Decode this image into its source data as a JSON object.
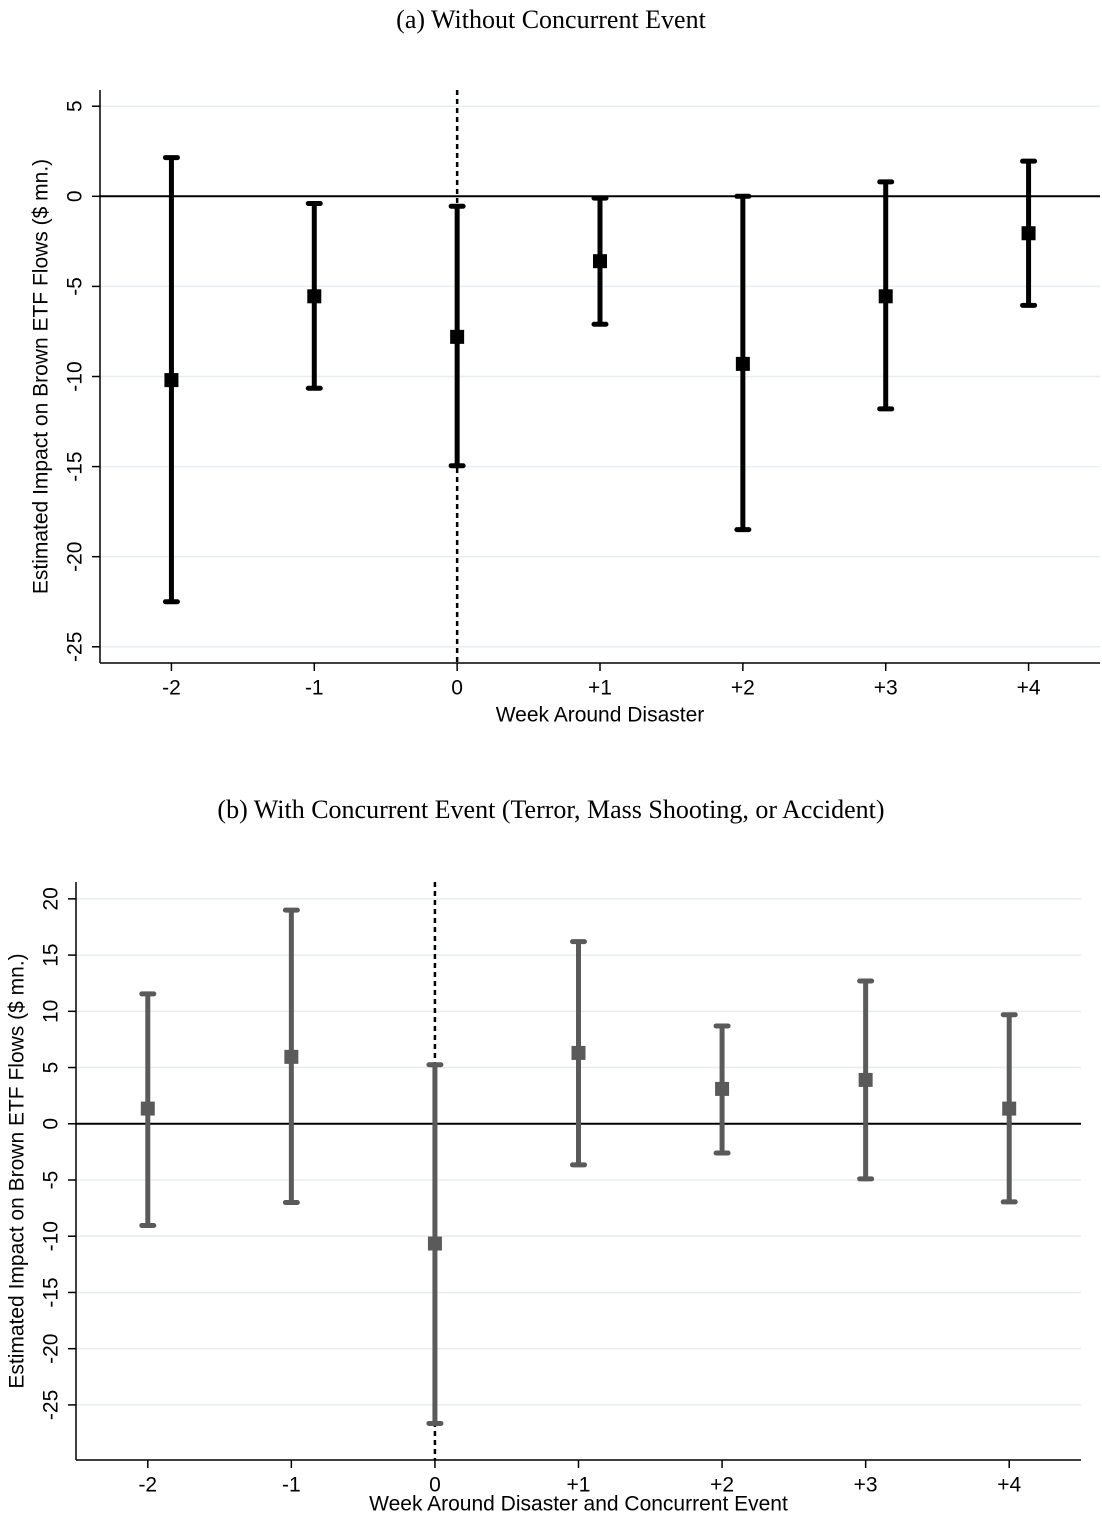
{
  "chart_data": [
    {
      "type": "errorbar",
      "title": "(a) Without Concurrent Event",
      "x_label": "Week Around Disaster",
      "y_label": "Estimated Impact on Brown ETF Flows ($ mn.)",
      "categories": [
        "-2",
        "-1",
        "0",
        "+1",
        "+2",
        "+3",
        "+4"
      ],
      "values": [
        -10.2,
        -5.55,
        -7.8,
        -3.6,
        -9.3,
        -5.55,
        -2.05
      ],
      "ci_lower": [
        -22.5,
        -10.65,
        -14.95,
        -7.1,
        -18.5,
        -11.8,
        -6.05
      ],
      "ci_upper": [
        2.15,
        -0.4,
        -0.55,
        -0.1,
        0,
        0.8,
        1.95
      ],
      "color": "#000000",
      "ylim": [
        -25.9,
        5.9
      ],
      "yticks": [
        5,
        0,
        -5,
        -10,
        -15,
        -20,
        -25
      ],
      "grid": true,
      "hline": 0,
      "vline": "0"
    },
    {
      "type": "errorbar",
      "title": "(b) With Concurrent Event (Terror, Mass Shooting, or Accident)",
      "x_label": "Week Around Disaster and Concurrent Event",
      "y_label": "Estimated Impact on Brown ETF Flows ($ mn.)",
      "categories": [
        "-2",
        "-1",
        "0",
        "+1",
        "+2",
        "+3",
        "+4"
      ],
      "values": [
        1.35,
        5.95,
        -10.65,
        6.3,
        3.1,
        3.9,
        1.35
      ],
      "ci_lower": [
        -9.05,
        -7.0,
        -26.65,
        -3.65,
        -2.6,
        -4.9,
        -6.95
      ],
      "ci_upper": [
        11.55,
        19.0,
        5.25,
        16.2,
        8.7,
        12.7,
        9.7
      ],
      "color": "#5a5a5a",
      "ylim": [
        -29.9,
        21.5
      ],
      "yticks": [
        20,
        15,
        10,
        5,
        0,
        -5,
        -10,
        -15,
        -20,
        -25
      ],
      "grid": true,
      "hline": 0,
      "vline": "0"
    }
  ]
}
